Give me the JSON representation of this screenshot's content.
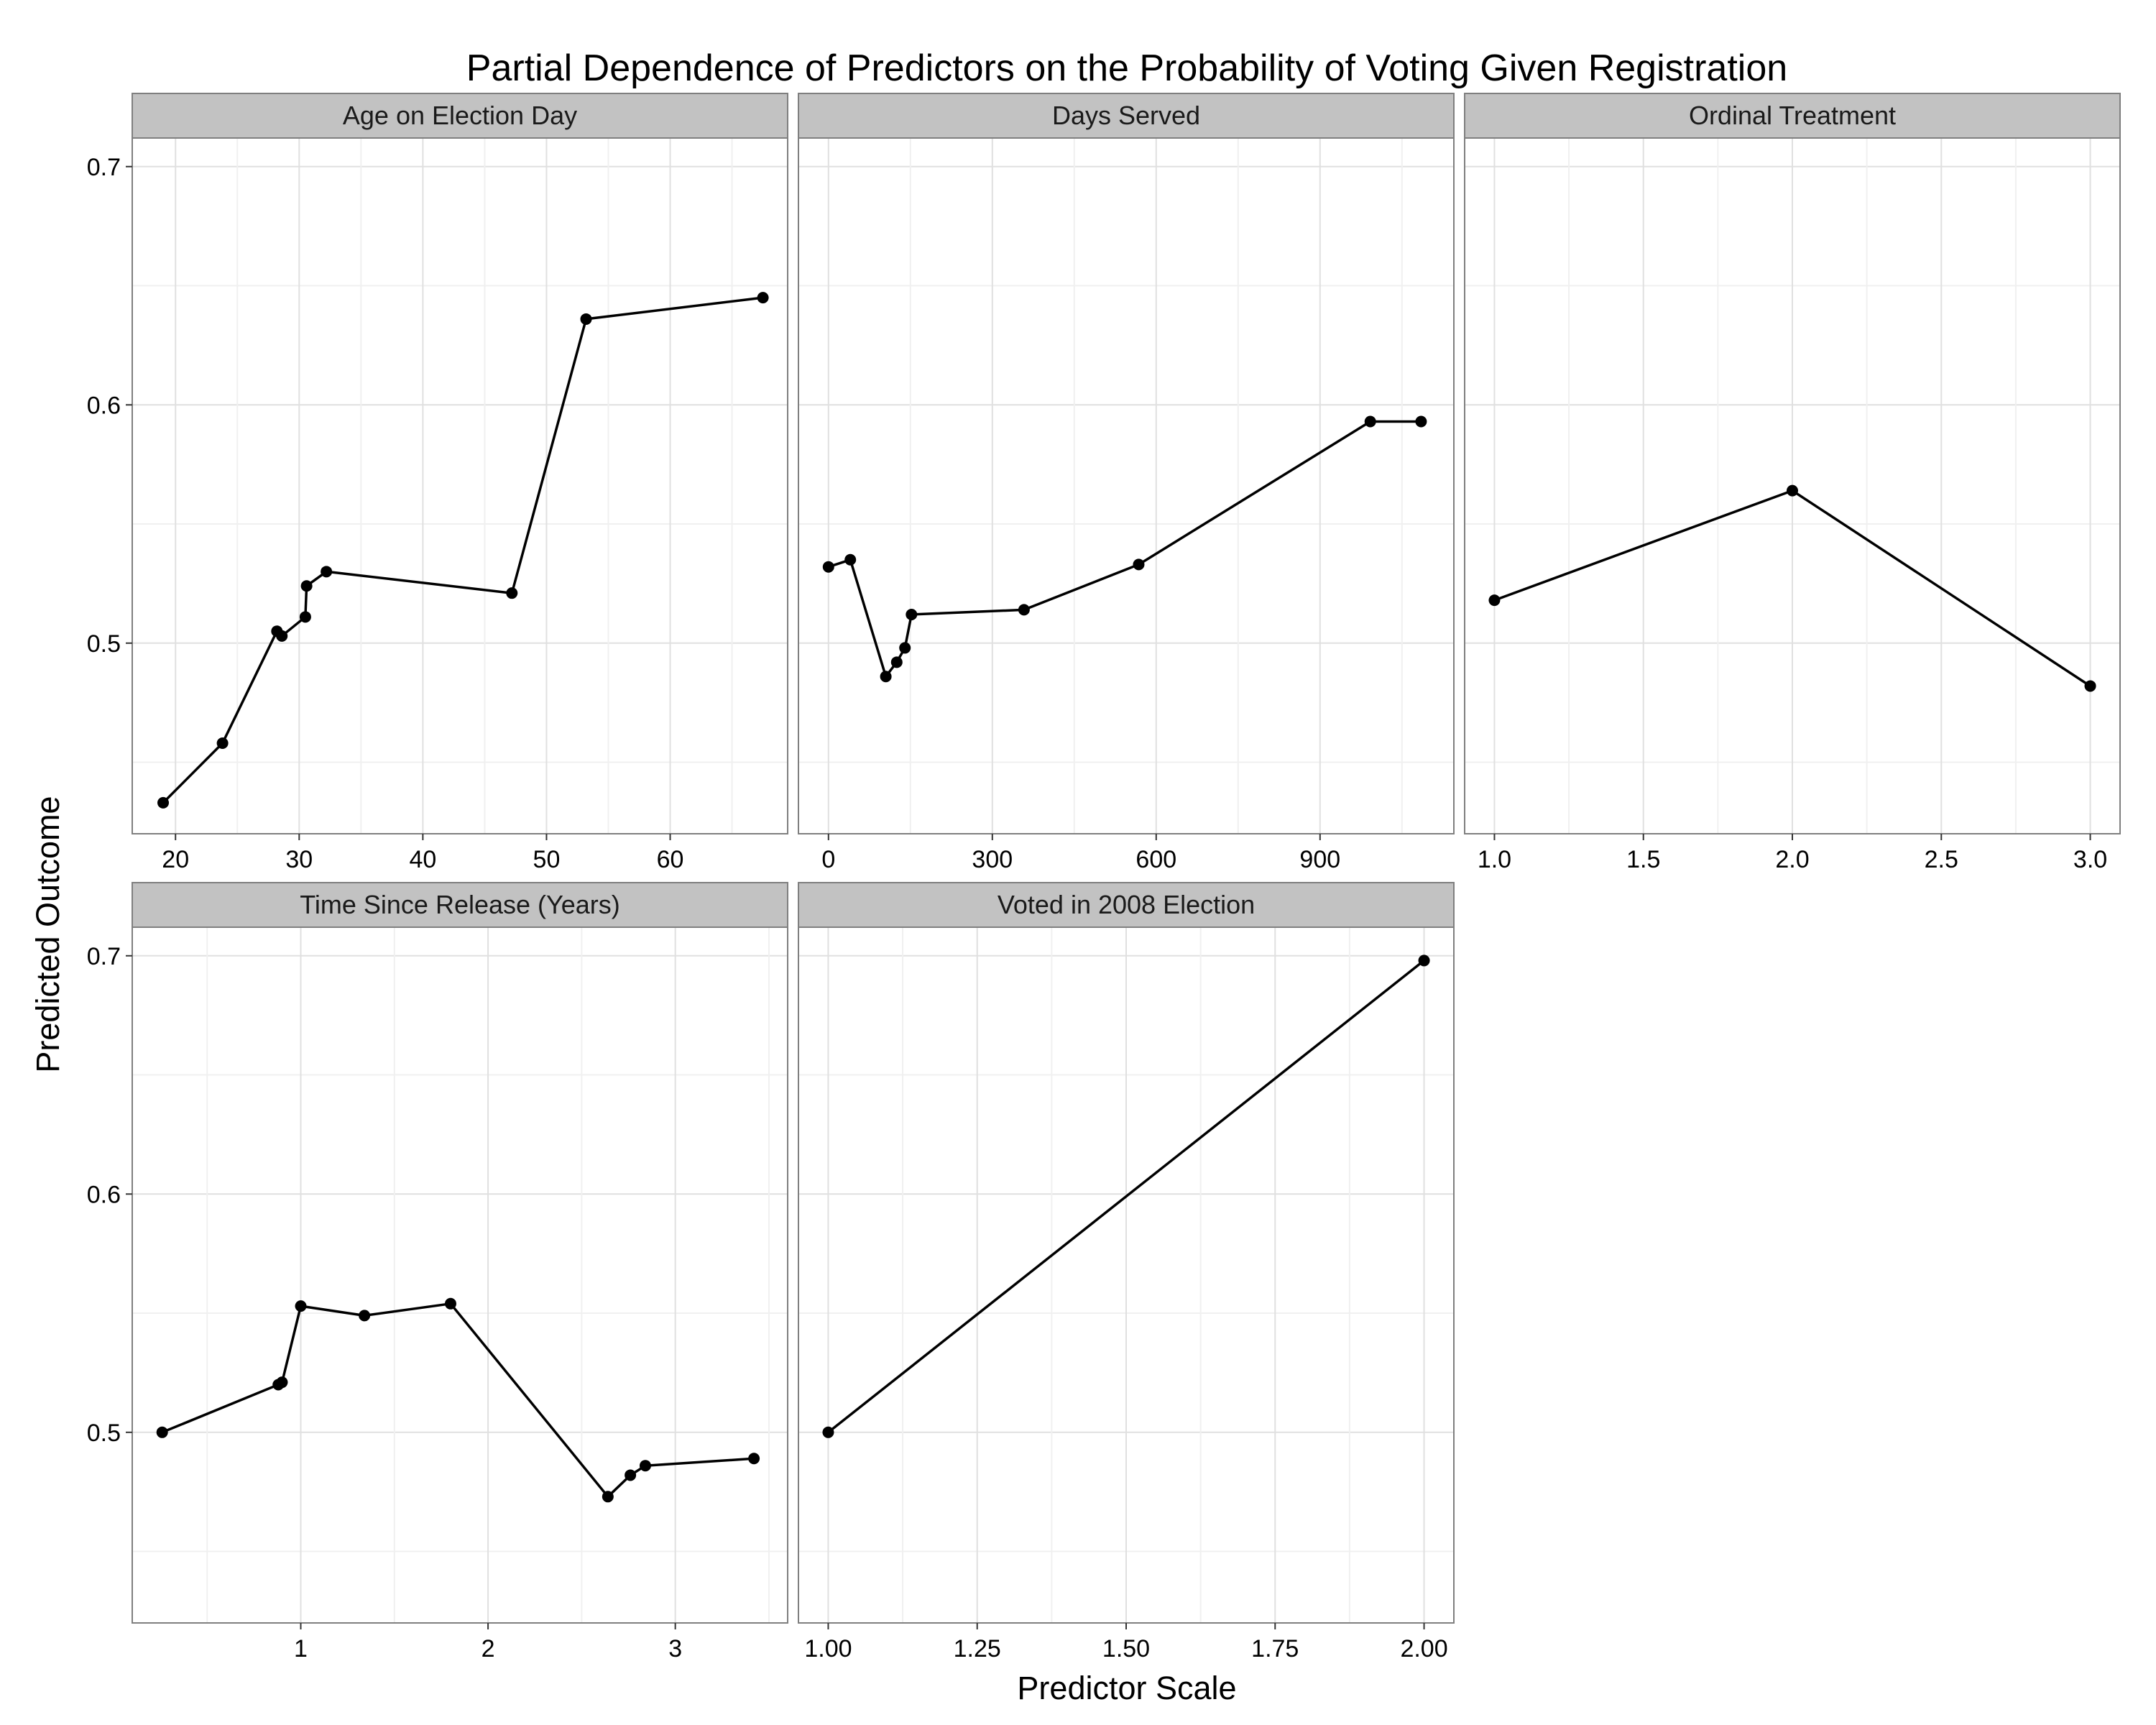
{
  "chart_data": {
    "type": "line",
    "title": "Partial Dependence of Predictors on the Probability of Voting Given Registration",
    "xlabel": "Predictor Scale",
    "ylabel": "Predicted Outcome",
    "y_ticks": [
      "0.5",
      "0.6",
      "0.7"
    ],
    "ylim": [
      0.42,
      0.712
    ],
    "grid": true,
    "shared_y": true,
    "colors": {
      "panel_background": "#ffffff",
      "panel_border": "#7f7f7f",
      "grid_major": "#e0e0e0",
      "grid_minor": "#f0f0f0",
      "strip_fill": "#c2c2c2",
      "line": "#000000",
      "point": "#000000"
    },
    "panels": [
      {
        "strip": "Age on Election Day",
        "xlim": [
          16.5,
          69.5
        ],
        "x_ticks": [
          "20",
          "30",
          "40",
          "50",
          "60"
        ],
        "x": [
          19,
          23.8,
          28.2,
          28.6,
          30.5,
          30.6,
          32.2,
          47.2,
          53.2,
          67.5
        ],
        "y": [
          0.433,
          0.458,
          0.505,
          0.503,
          0.511,
          0.524,
          0.53,
          0.521,
          0.636,
          0.645
        ]
      },
      {
        "strip": "Days Served",
        "xlim": [
          -55,
          1145
        ],
        "x_ticks": [
          "0",
          "300",
          "600",
          "900"
        ],
        "x": [
          0,
          40,
          105,
          125,
          140,
          152,
          358,
          568,
          992,
          1085
        ],
        "y": [
          0.532,
          0.535,
          0.486,
          0.492,
          0.498,
          0.512,
          0.514,
          0.533,
          0.593,
          0.593
        ]
      },
      {
        "strip": "Ordinal Treatment",
        "xlim": [
          0.9,
          3.1
        ],
        "x_ticks": [
          "1.0",
          "1.5",
          "2.0",
          "2.5",
          "3.0"
        ],
        "x": [
          1,
          2,
          3
        ],
        "y": [
          0.518,
          0.564,
          0.482
        ]
      },
      {
        "strip": "Time Since Release (Years)",
        "xlim": [
          0.1,
          3.6
        ],
        "x_ticks": [
          "1",
          "2",
          "3"
        ],
        "x": [
          0.26,
          0.88,
          0.9,
          1.0,
          1.34,
          1.8,
          2.64,
          2.76,
          2.84,
          3.42
        ],
        "y": [
          0.5,
          0.52,
          0.521,
          0.553,
          0.549,
          0.554,
          0.473,
          0.482,
          0.486,
          0.489
        ]
      },
      {
        "strip": "Voted in 2008 Election",
        "xlim": [
          0.95,
          2.05
        ],
        "x_ticks": [
          "1.00",
          "1.25",
          "1.50",
          "1.75",
          "2.00"
        ],
        "x": [
          1,
          2
        ],
        "y": [
          0.5,
          0.698
        ]
      }
    ]
  }
}
